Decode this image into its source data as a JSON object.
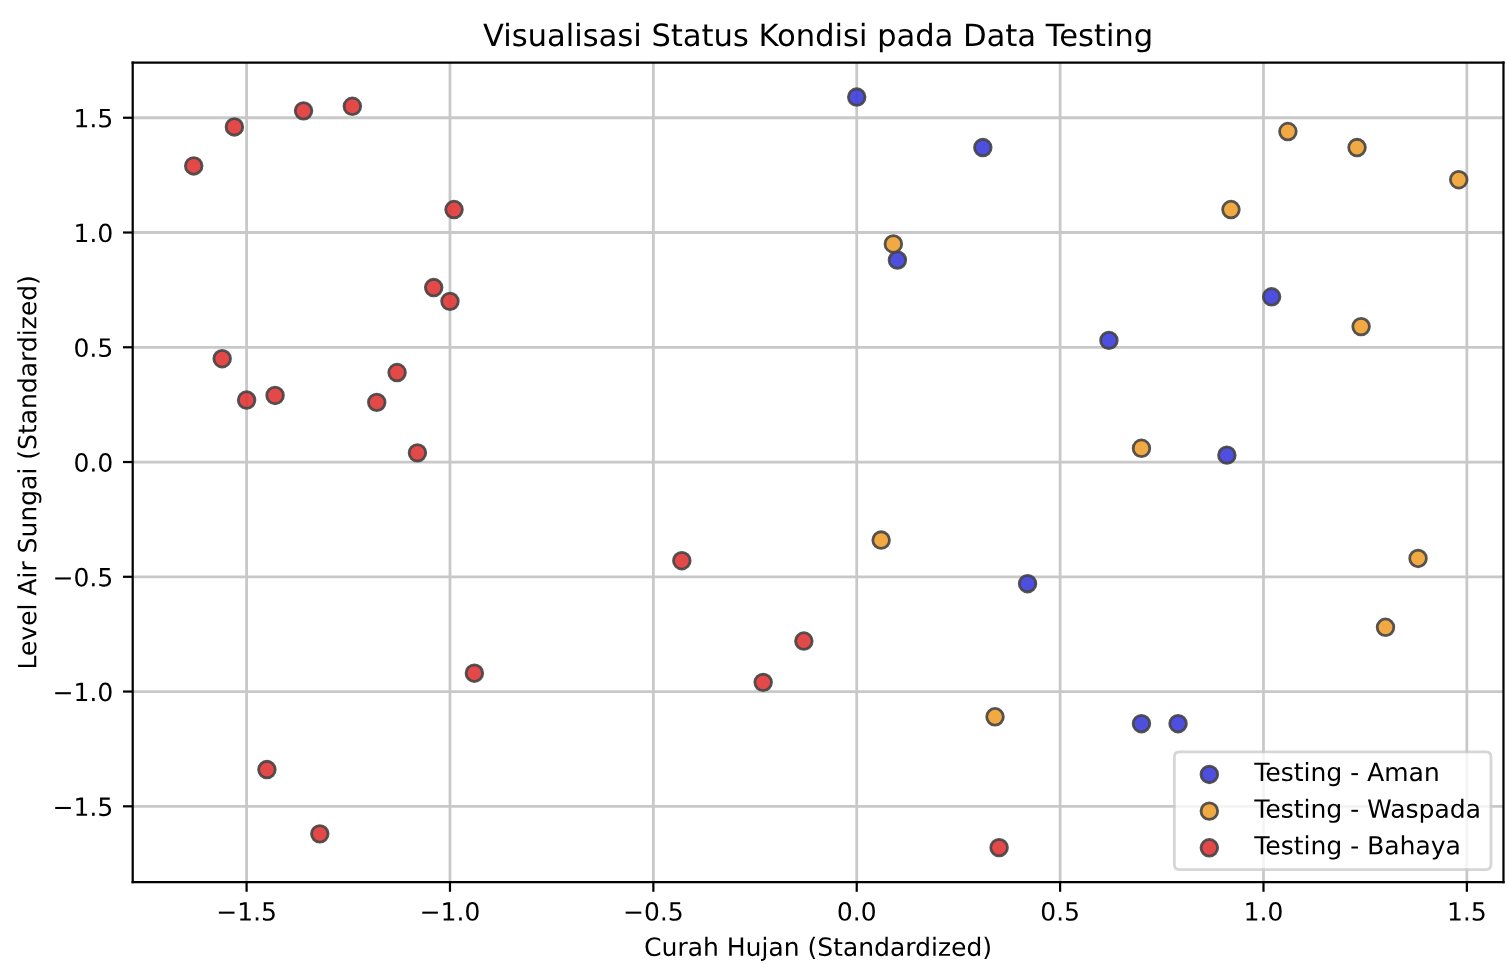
{
  "chart_data": {
    "type": "scatter",
    "title": "Visualisasi Status Kondisi pada Data Testing",
    "xlabel": "Curah Hujan (Standardized)",
    "ylabel": "Level Air Sungai (Standardized)",
    "xlim": [
      -1.78,
      1.59
    ],
    "ylim": [
      -1.83,
      1.74
    ],
    "xticks": [
      {
        "value": -1.5,
        "label": "−1.5"
      },
      {
        "value": -1.0,
        "label": "−1.0"
      },
      {
        "value": -0.5,
        "label": "−0.5"
      },
      {
        "value": 0.0,
        "label": "0.0"
      },
      {
        "value": 0.5,
        "label": "0.5"
      },
      {
        "value": 1.0,
        "label": "1.0"
      },
      {
        "value": 1.5,
        "label": "1.5"
      }
    ],
    "yticks": [
      {
        "value": -1.5,
        "label": "−1.5"
      },
      {
        "value": -1.0,
        "label": "−1.0"
      },
      {
        "value": -0.5,
        "label": "−0.5"
      },
      {
        "value": 0.0,
        "label": "0.0"
      },
      {
        "value": 0.5,
        "label": "0.5"
      },
      {
        "value": 1.0,
        "label": "1.0"
      },
      {
        "value": 1.5,
        "label": "1.5"
      }
    ],
    "grid": true,
    "legend": "bottom right",
    "marker": "circle",
    "series": [
      {
        "name": "Testing - Aman",
        "color": "#3b3bdc",
        "x": [
          0.0,
          0.31,
          0.1,
          0.62,
          1.02,
          0.91,
          0.42,
          0.7,
          0.79
        ],
        "values": [
          1.59,
          1.37,
          0.88,
          0.53,
          0.72,
          0.03,
          -0.53,
          -1.14,
          -1.14
        ]
      },
      {
        "name": "Testing - Waspada",
        "color": "#f0a030",
        "x": [
          1.06,
          1.23,
          0.92,
          1.48,
          0.09,
          1.24,
          0.7,
          0.06,
          1.38,
          1.3,
          0.34
        ],
        "values": [
          1.44,
          1.37,
          1.1,
          1.23,
          0.95,
          0.59,
          0.06,
          -0.34,
          -0.42,
          -0.72,
          -1.11
        ]
      },
      {
        "name": "Testing - Bahaya",
        "color": "#e03535",
        "x": [
          -1.63,
          -1.53,
          -1.36,
          -1.24,
          -0.99,
          -1.04,
          -1.0,
          -1.56,
          -1.5,
          -1.43,
          -1.13,
          -1.18,
          -1.08,
          -0.43,
          -0.94,
          -0.13,
          -0.23,
          -1.45,
          -1.32,
          0.35
        ],
        "values": [
          1.29,
          1.46,
          1.53,
          1.55,
          1.1,
          0.76,
          0.7,
          0.45,
          0.27,
          0.29,
          0.39,
          0.26,
          0.04,
          -0.43,
          -0.92,
          -0.78,
          -0.96,
          -1.34,
          -1.62,
          -1.68
        ]
      }
    ]
  }
}
